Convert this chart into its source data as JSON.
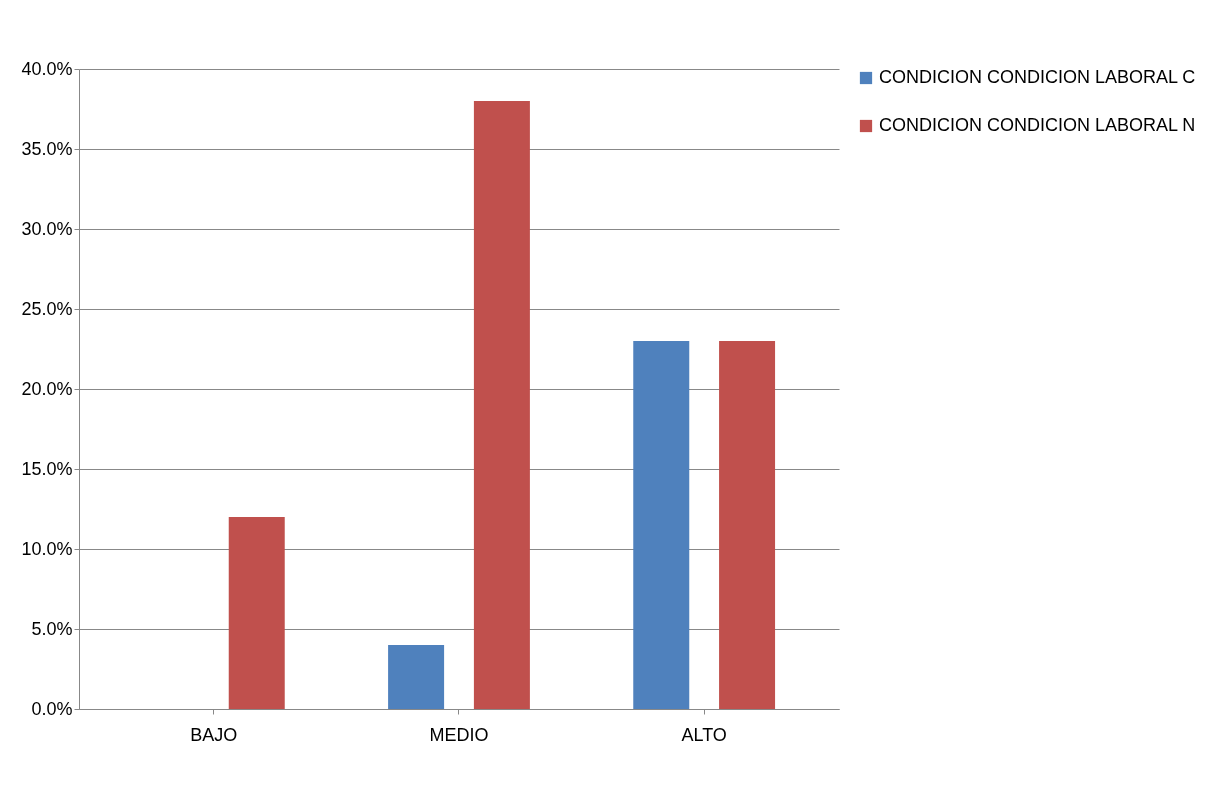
{
  "chart_data": {
    "type": "bar",
    "categories": [
      "BAJO",
      "MEDIO",
      "ALTO"
    ],
    "series": [
      {
        "name": "CONDICION CONDICION LABORAL C",
        "color": "#4f81bd",
        "values": [
          0,
          4,
          23
        ]
      },
      {
        "name": "CONDICION CONDICION LABORAL N",
        "color": "#c0504d",
        "values": [
          12,
          38,
          23
        ]
      }
    ],
    "ylim": [
      0,
      40
    ],
    "yticks": [
      {
        "value": 0,
        "label": "0.0%"
      },
      {
        "value": 5,
        "label": "5.0%"
      },
      {
        "value": 10,
        "label": "10.0%"
      },
      {
        "value": 15,
        "label": "15.0%"
      },
      {
        "value": 20,
        "label": "20.0%"
      },
      {
        "value": 25,
        "label": "25.0%"
      },
      {
        "value": 30,
        "label": "30.0%"
      },
      {
        "value": 35,
        "label": "35.0%"
      },
      {
        "value": 40,
        "label": "40.0%"
      }
    ],
    "grid": "y",
    "legend": "right"
  }
}
